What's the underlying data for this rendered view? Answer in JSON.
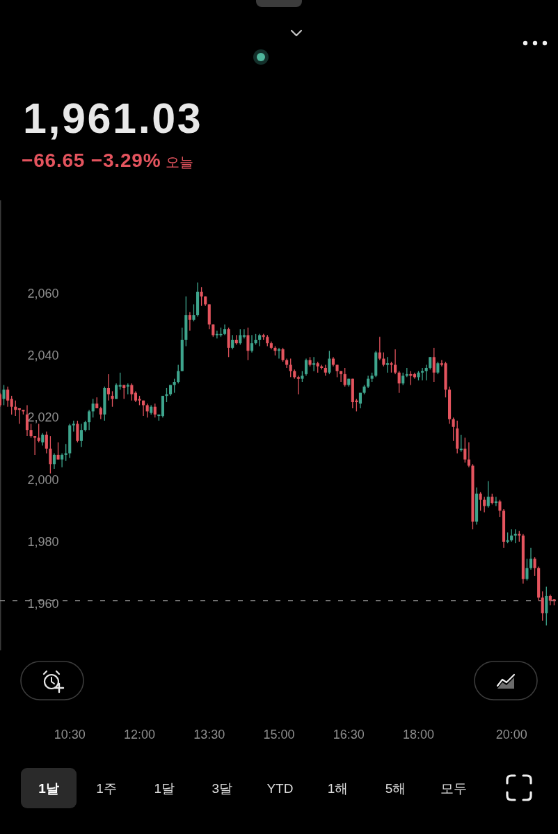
{
  "chart_data": {
    "type": "candlestick",
    "title": "1,961.03",
    "subtitle": "−66.65 −3.29% 오늘",
    "x": [
      9,
      9.0833,
      9.1667,
      9.25,
      9.3333,
      9.4167,
      9.5,
      9.5833,
      9.6667,
      9.75,
      9.8333,
      9.9167,
      10,
      10.0833,
      10.1667,
      10.25,
      10.3333,
      10.4167,
      10.5,
      10.5833,
      10.6667,
      10.75,
      10.8333,
      10.9167,
      11,
      11.0833,
      11.1667,
      11.25,
      11.3333,
      11.4167,
      11.5,
      11.5833,
      11.6667,
      11.75,
      11.8333,
      11.9167,
      12,
      12.0833,
      12.1667,
      12.25,
      12.3333,
      12.4167,
      12.5,
      12.5833,
      12.6667,
      12.75,
      12.8333,
      12.9167,
      13,
      13.0833,
      13.1667,
      13.25,
      13.3333,
      13.4167,
      13.5,
      13.5833,
      13.6667,
      13.75,
      13.8333,
      13.9167,
      14,
      14.0833,
      14.1667,
      14.25,
      14.3333,
      14.4167,
      14.5,
      14.5833,
      14.6667,
      14.75,
      14.8333,
      14.9167,
      15,
      15.0833,
      15.1667,
      15.25,
      15.3333,
      15.4167,
      15.5,
      15.5833,
      15.6667,
      15.75,
      15.8333,
      15.9167,
      16,
      16.0833,
      16.1667,
      16.25,
      16.3333,
      16.4167,
      16.5,
      16.5833,
      16.6667,
      16.75,
      16.8333,
      16.9167,
      17,
      17.0833,
      17.1667,
      17.25,
      17.3333,
      17.4167,
      17.5,
      17.5833,
      17.6667,
      17.75,
      17.8333,
      17.9167,
      18,
      18.0833,
      18.1667,
      18.25,
      18.3333,
      18.4167,
      18.5,
      18.5833,
      18.6667,
      18.75,
      18.8333,
      18.9167,
      19,
      19.0833,
      19.1667,
      19.25,
      19.3333,
      19.4167,
      19.5,
      19.5833,
      19.6667,
      19.75,
      19.8333,
      19.9167,
      20,
      20.0833,
      20.1667,
      20.25,
      20.3333,
      20.4167,
      20.5,
      20.5833,
      20.6667,
      20.75,
      20.8333,
      20.9167
    ],
    "ohlc": [
      [
        2027.5,
        2028,
        2023.5,
        2024
      ],
      [
        2026,
        2030.5,
        2024,
        2029
      ],
      [
        2029,
        2030,
        2023.5,
        2025.5
      ],
      [
        2026,
        2027,
        2021,
        2023.5
      ],
      [
        2023.5,
        2025.5,
        2020.5,
        2022.5
      ],
      [
        2023,
        2023,
        2018,
        2022.5
      ],
      [
        2022.5,
        2022.5,
        2021,
        2022
      ],
      [
        2021,
        2024,
        2014,
        2016
      ],
      [
        2016,
        2018,
        2013.5,
        2014
      ],
      [
        2014,
        2014,
        2008,
        2013.5
      ],
      [
        2013.5,
        2018,
        2012,
        2012.5
      ],
      [
        2012,
        2015,
        2011,
        2014.5
      ],
      [
        2014.5,
        2015.5,
        2008.5,
        2010
      ],
      [
        2010,
        2014,
        2002,
        2005
      ],
      [
        2005,
        2008.5,
        2003.5,
        2008
      ],
      [
        2008,
        2012,
        2006.5,
        2006.5
      ],
      [
        2006.5,
        2008.5,
        2004,
        2008
      ],
      [
        2008,
        2011.5,
        2006,
        2008.5
      ],
      [
        2008.5,
        2018,
        2007,
        2017.5
      ],
      [
        2017.5,
        2019,
        2015.5,
        2018
      ],
      [
        2018,
        2019,
        2012,
        2012.5
      ],
      [
        2012.5,
        2018,
        2010.5,
        2016
      ],
      [
        2016,
        2019,
        2015.5,
        2018.5
      ],
      [
        2018.5,
        2022.5,
        2016,
        2022
      ],
      [
        2022,
        2026,
        2020,
        2024.5
      ],
      [
        2024.5,
        2026.5,
        2023,
        2023
      ],
      [
        2023,
        2023.5,
        2019.5,
        2021
      ],
      [
        2021,
        2030,
        2019,
        2029.5
      ],
      [
        2029.5,
        2034,
        2025.5,
        2027.5
      ],
      [
        2027,
        2028.5,
        2023.5,
        2026
      ],
      [
        2026,
        2031,
        2026,
        2030.5
      ],
      [
        2030,
        2034.5,
        2029,
        2030.5
      ],
      [
        2030.5,
        2030.5,
        2026,
        2029.5
      ],
      [
        2030,
        2031,
        2027.5,
        2030.5
      ],
      [
        2030.5,
        2031,
        2025.5,
        2027.5
      ],
      [
        2028,
        2028.5,
        2025,
        2025.5
      ],
      [
        2026,
        2027,
        2024,
        2025.5
      ],
      [
        2025.5,
        2025.5,
        2020.5,
        2024
      ],
      [
        2024,
        2024.5,
        2020,
        2022
      ],
      [
        2021.5,
        2024,
        2021,
        2023.5
      ],
      [
        2023.5,
        2024.5,
        2020,
        2021
      ],
      [
        2020.5,
        2021,
        2019,
        2021
      ],
      [
        2020.5,
        2027,
        2020,
        2027
      ],
      [
        2027,
        2029.5,
        2025,
        2027.5
      ],
      [
        2027.5,
        2030.5,
        2027,
        2030.5
      ],
      [
        2030.5,
        2032.5,
        2028,
        2031.5
      ],
      [
        2031.5,
        2037,
        2031,
        2035
      ],
      [
        2035,
        2049,
        2035,
        2045
      ],
      [
        2045,
        2059,
        2043,
        2053
      ],
      [
        2053,
        2054,
        2048,
        2051.5
      ],
      [
        2051.5,
        2056.5,
        2051,
        2053
      ],
      [
        2053,
        2063.5,
        2052.5,
        2060.5
      ],
      [
        2060.5,
        2062,
        2056,
        2059
      ],
      [
        2059,
        2059,
        2056,
        2056.5
      ],
      [
        2056.5,
        2056.5,
        2048.5,
        2050
      ],
      [
        2050,
        2050,
        2046,
        2046.5
      ],
      [
        2046.5,
        2048,
        2045.5,
        2047
      ],
      [
        2046.5,
        2049,
        2046,
        2047
      ],
      [
        2047,
        2050,
        2046.5,
        2048.5
      ],
      [
        2048.5,
        2049,
        2039.5,
        2042.5
      ],
      [
        2042.5,
        2046.5,
        2042,
        2045
      ],
      [
        2045,
        2046.5,
        2043.5,
        2044
      ],
      [
        2044,
        2048.5,
        2043.5,
        2046.5
      ],
      [
        2046,
        2048.5,
        2045.5,
        2046.5
      ],
      [
        2046.5,
        2049,
        2038.5,
        2041.5
      ],
      [
        2041.5,
        2046.5,
        2041,
        2044
      ],
      [
        2044,
        2047,
        2043.5,
        2045
      ],
      [
        2045,
        2047,
        2043,
        2046.5
      ],
      [
        2046.5,
        2047,
        2045,
        2046
      ],
      [
        2046,
        2046.5,
        2043,
        2044
      ],
      [
        2044,
        2044.5,
        2042,
        2042.5
      ],
      [
        2042.5,
        2043,
        2040,
        2041.5
      ],
      [
        2041.5,
        2042.5,
        2039,
        2042
      ],
      [
        2042,
        2042.5,
        2038,
        2038.5
      ],
      [
        2038.5,
        2039,
        2036,
        2037
      ],
      [
        2037,
        2039,
        2033,
        2035
      ],
      [
        2035,
        2035.5,
        2032.5,
        2033
      ],
      [
        2033,
        2033.5,
        2027.5,
        2032.5
      ],
      [
        2032.5,
        2035,
        2031.5,
        2033.5
      ],
      [
        2034,
        2039,
        2033.5,
        2038.5
      ],
      [
        2038.5,
        2039.5,
        2036.5,
        2037
      ],
      [
        2037,
        2039.5,
        2035,
        2037.5
      ],
      [
        2037.5,
        2038,
        2034.5,
        2036.5
      ],
      [
        2036.5,
        2037,
        2035.5,
        2036
      ],
      [
        2036,
        2037,
        2033.5,
        2034.5
      ],
      [
        2034.5,
        2041.5,
        2034,
        2039
      ],
      [
        2039,
        2039.5,
        2036.5,
        2037
      ],
      [
        2037,
        2037,
        2033,
        2035
      ],
      [
        2035,
        2035,
        2031.5,
        2034
      ],
      [
        2034,
        2036,
        2030,
        2030.5
      ],
      [
        2030.5,
        2032.5,
        2030,
        2032.5
      ],
      [
        2032.5,
        2032.5,
        2023,
        2025
      ],
      [
        2025.5,
        2026,
        2022,
        2025
      ],
      [
        2024.5,
        2028,
        2023,
        2028
      ],
      [
        2028,
        2030.5,
        2027.5,
        2030
      ],
      [
        2030,
        2033.5,
        2029.5,
        2032.5
      ],
      [
        2032.5,
        2034.5,
        2031.5,
        2033.5
      ],
      [
        2033.5,
        2041.5,
        2033,
        2041
      ],
      [
        2041,
        2046,
        2038.5,
        2039
      ],
      [
        2039,
        2041,
        2036.5,
        2037
      ],
      [
        2037,
        2039.5,
        2034.5,
        2037.5
      ],
      [
        2037.5,
        2038,
        2034.5,
        2037
      ],
      [
        2037,
        2042,
        2034,
        2034.5
      ],
      [
        2034.5,
        2035,
        2028,
        2031
      ],
      [
        2031,
        2034.5,
        2030.5,
        2033.5
      ],
      [
        2033.5,
        2036,
        2033,
        2034
      ],
      [
        2034,
        2035,
        2030.5,
        2033.5
      ],
      [
        2034,
        2034.5,
        2032.5,
        2033
      ],
      [
        2033,
        2035,
        2032,
        2034.5
      ],
      [
        2034.5,
        2036,
        2032,
        2035
      ],
      [
        2035,
        2037,
        2032,
        2036
      ],
      [
        2036,
        2039.5,
        2035.5,
        2039.5
      ],
      [
        2039.5,
        2042.5,
        2031.5,
        2034.5
      ],
      [
        2034.5,
        2038,
        2034,
        2037.5
      ],
      [
        2037.5,
        2038.5,
        2036.5,
        2037
      ],
      [
        2037.5,
        2038,
        2026.5,
        2029
      ],
      [
        2029,
        2030,
        2018,
        2019.5
      ],
      [
        2019.5,
        2020,
        2012.5,
        2017
      ],
      [
        2016.5,
        2019,
        2008.5,
        2010
      ],
      [
        2009.5,
        2014.5,
        2009,
        2010
      ],
      [
        2010,
        2013.5,
        2005.5,
        2006.5
      ],
      [
        2006.5,
        2012,
        2004,
        2004.5
      ],
      [
        2004.5,
        2005,
        1984,
        1986.5
      ],
      [
        1986.5,
        1997.5,
        1985.5,
        1995.5
      ],
      [
        1995.5,
        1996,
        1990,
        1993.5
      ],
      [
        1993.5,
        1994.5,
        1989.5,
        1991.5
      ],
      [
        1991.5,
        1999.5,
        1991,
        1994.5
      ],
      [
        1994.5,
        1995.5,
        1992,
        1992.5
      ],
      [
        1992.5,
        1994.5,
        1991.5,
        1993
      ],
      [
        1993,
        1993.5,
        1988,
        1990
      ],
      [
        1990,
        1990.5,
        1978,
        1980
      ],
      [
        1980,
        1983,
        1979.5,
        1980.5
      ],
      [
        1980.5,
        1984,
        1980,
        1982
      ],
      [
        1982,
        1984,
        1979.5,
        1982.5
      ],
      [
        1982.5,
        1983.5,
        1980,
        1982
      ],
      [
        1982,
        1982.5,
        1966.5,
        1968
      ],
      [
        1968,
        1974.5,
        1967.5,
        1971.5
      ],
      [
        1971.5,
        1978,
        1971,
        1974.5
      ],
      [
        1974.5,
        1975,
        1969,
        1971.5
      ],
      [
        1971.5,
        1972,
        1961,
        1962
      ],
      [
        1962,
        1964,
        1954.5,
        1957
      ],
      [
        1957,
        1965.5,
        1953,
        1962.5
      ],
      [
        1962.5,
        1963,
        1959.5,
        1961
      ],
      [
        1961.5,
        1961.5,
        1959.5,
        1961
      ]
    ],
    "colors": [
      "#e4545e",
      "#3ea58d",
      "#e4545e",
      "#e4545e",
      "#e4545e",
      "#e4545e",
      "#e4545e",
      "#e4545e",
      "#e4545e",
      "#e4545e",
      "#e4545e",
      "#3ea58d",
      "#e4545e",
      "#e4545e",
      "#3ea58d",
      "#e4545e",
      "#3ea58d",
      "#3ea58d",
      "#3ea58d",
      "#3ea58d",
      "#e4545e",
      "#3ea58d",
      "#3ea58d",
      "#3ea58d",
      "#3ea58d",
      "#e4545e",
      "#e4545e",
      "#3ea58d",
      "#e4545e",
      "#e4545e",
      "#3ea58d",
      "#3ea58d",
      "#e4545e",
      "#3ea58d",
      "#e4545e",
      "#e4545e",
      "#e4545e",
      "#e4545e",
      "#e4545e",
      "#3ea58d",
      "#e4545e",
      "#3ea58d",
      "#3ea58d",
      "#3ea58d",
      "#3ea58d",
      "#3ea58d",
      "#3ea58d",
      "#3ea58d",
      "#3ea58d",
      "#e4545e",
      "#3ea58d",
      "#3ea58d",
      "#e4545e",
      "#e4545e",
      "#e4545e",
      "#e4545e",
      "#3ea58d",
      "#3ea58d",
      "#3ea58d",
      "#e4545e",
      "#3ea58d",
      "#e4545e",
      "#3ea58d",
      "#3ea58d",
      "#e4545e",
      "#3ea58d",
      "#3ea58d",
      "#3ea58d",
      "#e4545e",
      "#e4545e",
      "#e4545e",
      "#e4545e",
      "#3ea58d",
      "#e4545e",
      "#e4545e",
      "#e4545e",
      "#e4545e",
      "#e4545e",
      "#3ea58d",
      "#3ea58d",
      "#e4545e",
      "#3ea58d",
      "#e4545e",
      "#e4545e",
      "#e4545e",
      "#3ea58d",
      "#e4545e",
      "#e4545e",
      "#e4545e",
      "#e4545e",
      "#3ea58d",
      "#e4545e",
      "#e4545e",
      "#3ea58d",
      "#3ea58d",
      "#3ea58d",
      "#3ea58d",
      "#3ea58d",
      "#e4545e",
      "#e4545e",
      "#3ea58d",
      "#e4545e",
      "#e4545e",
      "#e4545e",
      "#3ea58d",
      "#3ea58d",
      "#e4545e",
      "#e4545e",
      "#3ea58d",
      "#3ea58d",
      "#3ea58d",
      "#3ea58d",
      "#e4545e",
      "#3ea58d",
      "#e4545e",
      "#e4545e",
      "#e4545e",
      "#e4545e",
      "#e4545e",
      "#3ea58d",
      "#e4545e",
      "#e4545e",
      "#e4545e",
      "#3ea58d",
      "#e4545e",
      "#e4545e",
      "#3ea58d",
      "#e4545e",
      "#3ea58d",
      "#e4545e",
      "#e4545e",
      "#3ea58d",
      "#3ea58d",
      "#3ea58d",
      "#e4545e",
      "#e4545e",
      "#3ea58d",
      "#3ea58d",
      "#e4545e",
      "#e4545e",
      "#e4545e",
      "#3ea58d",
      "#e4545e",
      "#e4545e"
    ],
    "xlim": [
      9,
      21
    ],
    "ylim": [
      1945,
      2090
    ],
    "xticks": [
      {
        "value": 10.5,
        "label": "10:30"
      },
      {
        "value": 12,
        "label": "12:00"
      },
      {
        "value": 13.5,
        "label": "13:30"
      },
      {
        "value": 15,
        "label": "15:00"
      },
      {
        "value": 16.5,
        "label": "16:30"
      },
      {
        "value": 18,
        "label": "18:00"
      },
      {
        "value": 20,
        "label": "20:00"
      }
    ],
    "yticks": [
      {
        "value": 1960,
        "label": "1,960"
      },
      {
        "value": 1980,
        "label": "1,980"
      },
      {
        "value": 2000,
        "label": "2,000"
      },
      {
        "value": 2020,
        "label": "2,020"
      },
      {
        "value": 2040,
        "label": "2,040"
      },
      {
        "value": 2060,
        "label": "2,060"
      }
    ],
    "ref_lines": [
      {
        "axis": "y",
        "value": 1961,
        "color": "#8a8a8a",
        "line_style": "dashed"
      }
    ],
    "annotations": [
      "1날",
      "1주",
      "1달",
      "3달",
      "YTD",
      "1해",
      "5해",
      "모두"
    ]
  }
}
